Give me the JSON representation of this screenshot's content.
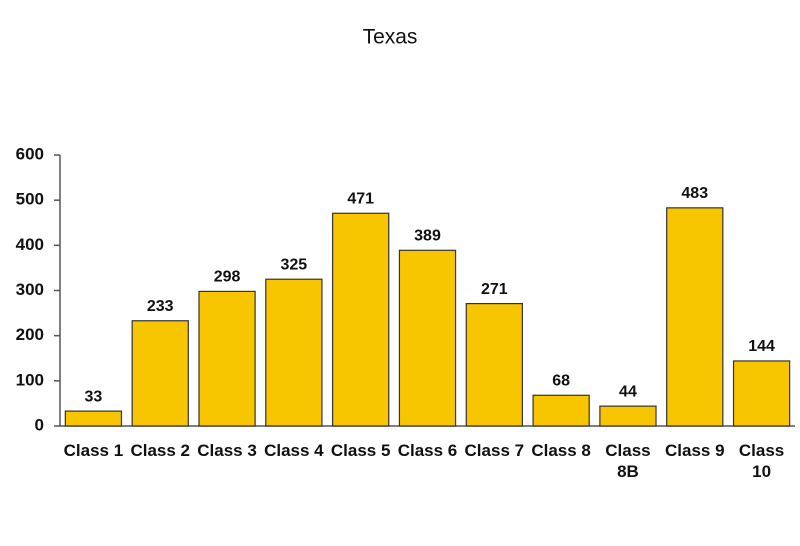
{
  "chart_data": {
    "type": "bar",
    "title": "Texas",
    "categories": [
      "Class 1",
      "Class 2",
      "Class 3",
      "Class 4",
      "Class 5",
      "Class 6",
      "Class 7",
      "Class 8",
      "Class 8B",
      "Class 9",
      "Class 10"
    ],
    "values": [
      33,
      233,
      298,
      325,
      471,
      389,
      271,
      68,
      44,
      483,
      144
    ],
    "color": "#f7c600",
    "ylim": [
      0,
      600
    ],
    "yticks": [
      0,
      100,
      200,
      300,
      400,
      500,
      600
    ],
    "grid": false
  }
}
